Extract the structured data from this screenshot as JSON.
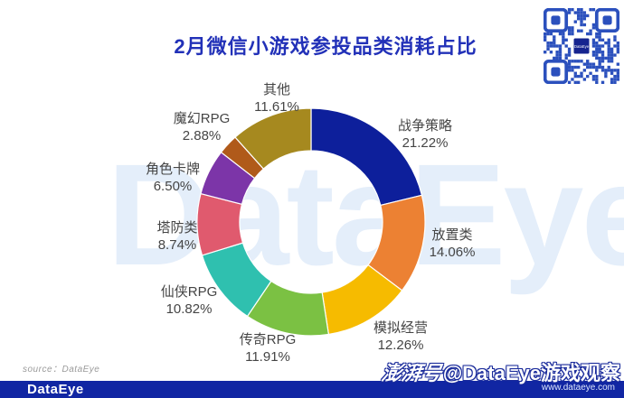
{
  "title": "2月微信小游戏参投品类消耗占比",
  "center_watermark": "DataEye",
  "qr": {
    "center_label": "DataEye"
  },
  "chart_data": {
    "type": "pie",
    "subtype": "donut",
    "title": "2月微信小游戏参投品类消耗占比",
    "start_angle_deg": 0,
    "direction": "clockwise",
    "inner_radius_ratio": 0.63,
    "legend": "none (labels around slices)",
    "slices": [
      {
        "label": "战争策略",
        "value": 21.22,
        "pct": "21.22%",
        "color": "#0d1f9b"
      },
      {
        "label": "放置类",
        "value": 14.06,
        "pct": "14.06%",
        "color": "#ec8133"
      },
      {
        "label": "模拟经营",
        "value": 12.26,
        "pct": "12.26%",
        "color": "#f6bb00"
      },
      {
        "label": "传奇RPG",
        "value": 11.91,
        "pct": "11.91%",
        "color": "#7bc143"
      },
      {
        "label": "仙侠RPG",
        "value": 10.82,
        "pct": "10.82%",
        "color": "#2fc0af"
      },
      {
        "label": "塔防类",
        "value": 8.74,
        "pct": "8.74%",
        "color": "#e05a6e"
      },
      {
        "label": "角色卡牌",
        "value": 6.5,
        "pct": "6.50%",
        "color": "#7c35a8"
      },
      {
        "label": "魔幻RPG",
        "value": 2.88,
        "pct": "2.88%",
        "color": "#b05a1a"
      },
      {
        "label": "其他",
        "value": 11.61,
        "pct": "11.61%",
        "color": "#a6891f"
      }
    ]
  },
  "footer": {
    "source": "source：DataEye",
    "logo": "DataEye"
  },
  "corner_watermark": {
    "platform": "澎湃号",
    "handle": "@DataEye游戏观察",
    "url": "www.dataeye.com"
  },
  "colors": {
    "title": "#2231b8",
    "bottom_bar": "#1126a3",
    "center_watermark": "#e4eefa",
    "qr_module": "#2b50bd",
    "qr_logo_bg": "#16248f"
  }
}
